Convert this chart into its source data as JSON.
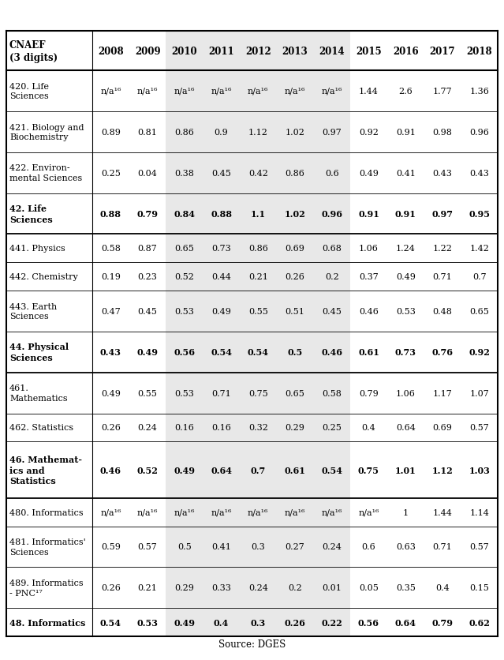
{
  "title": "",
  "source": "Source: DGES",
  "columns": [
    "CNAEF\n(3 digits)",
    "2008",
    "2009",
    "2010",
    "2011",
    "2012",
    "2013",
    "2014",
    "2015",
    "2016",
    "2017",
    "2018"
  ],
  "rows": [
    {
      "label": "420. Life\nSciences",
      "values": [
        "n/a¹⁶",
        "n/a¹⁶",
        "n/a¹⁶",
        "n/a¹⁶",
        "n/a¹⁶",
        "n/a¹⁶",
        "n/a¹⁶",
        "1.44",
        "2.6",
        "1.77",
        "1.36"
      ],
      "bold": false
    },
    {
      "label": "421. Biology and\nBiochemistry",
      "values": [
        "0.89",
        "0.81",
        "0.86",
        "0.9",
        "1.12",
        "1.02",
        "0.97",
        "0.92",
        "0.91",
        "0.98",
        "0.96"
      ],
      "bold": false
    },
    {
      "label": "422. Environ-\nmental Sciences",
      "values": [
        "0.25",
        "0.04",
        "0.38",
        "0.45",
        "0.42",
        "0.86",
        "0.6",
        "0.49",
        "0.41",
        "0.43",
        "0.43"
      ],
      "bold": false
    },
    {
      "label": "42. Life\nSciences",
      "values": [
        "0.88",
        "0.79",
        "0.84",
        "0.88",
        "1.1",
        "1.02",
        "0.96",
        "0.91",
        "0.91",
        "0.97",
        "0.95"
      ],
      "bold": true
    },
    {
      "label": "441. Physics",
      "values": [
        "0.58",
        "0.87",
        "0.65",
        "0.73",
        "0.86",
        "0.69",
        "0.68",
        "1.06",
        "1.24",
        "1.22",
        "1.42"
      ],
      "bold": false
    },
    {
      "label": "442. Chemistry",
      "values": [
        "0.19",
        "0.23",
        "0.52",
        "0.44",
        "0.21",
        "0.26",
        "0.2",
        "0.37",
        "0.49",
        "0.71",
        "0.7"
      ],
      "bold": false
    },
    {
      "label": "443. Earth\nSciences",
      "values": [
        "0.47",
        "0.45",
        "0.53",
        "0.49",
        "0.55",
        "0.51",
        "0.45",
        "0.46",
        "0.53",
        "0.48",
        "0.65"
      ],
      "bold": false
    },
    {
      "label": "44. Physical\nSciences",
      "values": [
        "0.43",
        "0.49",
        "0.56",
        "0.54",
        "0.54",
        "0.5",
        "0.46",
        "0.61",
        "0.73",
        "0.76",
        "0.92"
      ],
      "bold": true
    },
    {
      "label": "461.\nMathematics",
      "values": [
        "0.49",
        "0.55",
        "0.53",
        "0.71",
        "0.75",
        "0.65",
        "0.58",
        "0.79",
        "1.06",
        "1.17",
        "1.07"
      ],
      "bold": false
    },
    {
      "label": "462. Statistics",
      "values": [
        "0.26",
        "0.24",
        "0.16",
        "0.16",
        "0.32",
        "0.29",
        "0.25",
        "0.4",
        "0.64",
        "0.69",
        "0.57"
      ],
      "bold": false
    },
    {
      "label": "46. Mathemat-\nics and\nStatistics",
      "values": [
        "0.46",
        "0.52",
        "0.49",
        "0.64",
        "0.7",
        "0.61",
        "0.54",
        "0.75",
        "1.01",
        "1.12",
        "1.03"
      ],
      "bold": true
    },
    {
      "label": "480. Informatics",
      "values": [
        "n/a¹⁶",
        "n/a¹⁶",
        "n/a¹⁶",
        "n/a¹⁶",
        "n/a¹⁶",
        "n/a¹⁶",
        "n/a¹⁶",
        "n/a¹⁶",
        "1",
        "1.44",
        "1.14"
      ],
      "bold": false
    },
    {
      "label": "481. Informatics'\nSciences",
      "values": [
        "0.59",
        "0.57",
        "0.5",
        "0.41",
        "0.3",
        "0.27",
        "0.24",
        "0.6",
        "0.63",
        "0.71",
        "0.57"
      ],
      "bold": false
    },
    {
      "label": "489. Informatics\n- PNC¹⁷",
      "values": [
        "0.26",
        "0.21",
        "0.29",
        "0.33",
        "0.24",
        "0.2",
        "0.01",
        "0.05",
        "0.35",
        "0.4",
        "0.15"
      ],
      "bold": false
    },
    {
      "label": "48. Informatics",
      "values": [
        "0.54",
        "0.53",
        "0.49",
        "0.4",
        "0.3",
        "0.26",
        "0.22",
        "0.56",
        "0.64",
        "0.79",
        "0.62"
      ],
      "bold": true
    }
  ],
  "shaded_col_indices": [
    3,
    4,
    5,
    6,
    7
  ],
  "shaded_bg": "#e8e8e8",
  "text_color": "#000000",
  "font_size": 8.0,
  "header_font_size": 8.5,
  "col_widths_rel": [
    2.1,
    0.9,
    0.9,
    0.9,
    0.9,
    0.9,
    0.9,
    0.9,
    0.9,
    0.9,
    0.9,
    0.9
  ]
}
